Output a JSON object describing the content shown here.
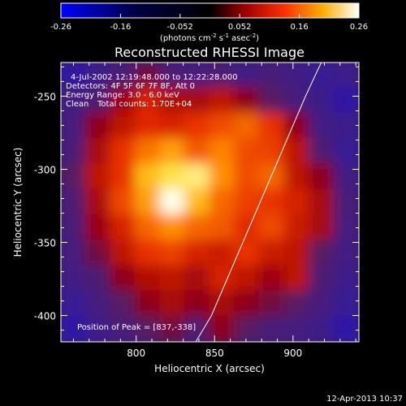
{
  "colorbar": {
    "tick_labels": [
      "-0.26",
      "-0.16",
      "-0.052",
      "0.052",
      "0.16",
      "0.26"
    ],
    "range": [
      -0.26,
      0.26
    ],
    "colormap": [
      "#0000ff",
      "#000000",
      "#e62000",
      "#ffd000",
      "#ffffff"
    ]
  },
  "colorbar_unit_label": {
    "pre": "(photons cm",
    "exp1": "-2",
    "mid": " s",
    "exp2": "-1",
    "mid2": " asec",
    "exp3": "-2",
    "post": ")"
  },
  "footer_timestamp": "12-Apr-2013 10:37",
  "chart_data": {
    "type": "heatmap",
    "title": "Reconstructed RHESSI Image",
    "xlabel": "Heliocentric X (arcsec)",
    "ylabel": "Heliocentric Y (arcsec)",
    "xlim": [
      752,
      942
    ],
    "ylim": [
      -418,
      -227
    ],
    "x_ticks": [
      800,
      850,
      900
    ],
    "x_tick_labels": [
      "800",
      "850",
      "900"
    ],
    "y_ticks": [
      -250,
      -300,
      -350,
      -400
    ],
    "y_tick_labels": [
      "-250",
      "-300",
      "-350",
      "-400"
    ],
    "annotations": [
      "4-Jul-2002 12:19:48.000 to 12:22:28.000",
      "Detectors: 4F 5F 6F 7F 8F, Att 0",
      "Energy Range: 3.0 - 6.0 keV",
      "Clean",
      "Total counts: 1.70E+04",
      "Position of Peak = [837,-338]"
    ],
    "peak_position": [
      837,
      -338
    ],
    "peak_value": 0.26,
    "limb_curve": [
      [
        838,
        -418
      ],
      [
        848,
        -400
      ],
      [
        860,
        -370
      ],
      [
        872,
        -340
      ],
      [
        884,
        -310
      ],
      [
        896,
        -280
      ],
      [
        908,
        -250
      ],
      [
        918,
        -227
      ]
    ],
    "intensity_grid": [
      [
        -0.16,
        -0.12,
        -0.05,
        0.0,
        -0.05,
        -0.08,
        -0.04,
        -0.1,
        -0.06,
        -0.1,
        -0.14,
        -0.12
      ],
      [
        -0.1,
        -0.04,
        0.03,
        0.08,
        0.05,
        0.04,
        0.06,
        0.02,
        -0.02,
        -0.08,
        -0.12,
        -0.16
      ],
      [
        -0.08,
        0.02,
        0.06,
        0.09,
        0.08,
        0.1,
        0.12,
        0.14,
        0.1,
        0.02,
        -0.1,
        -0.12
      ],
      [
        -0.06,
        0.04,
        0.1,
        0.15,
        0.18,
        0.13,
        0.16,
        0.12,
        0.11,
        0.06,
        -0.04,
        -0.14
      ],
      [
        -0.02,
        0.06,
        0.1,
        0.2,
        0.23,
        0.24,
        0.17,
        0.12,
        0.14,
        0.06,
        0.02,
        -0.1
      ],
      [
        -0.04,
        0.04,
        0.12,
        0.18,
        0.26,
        0.2,
        0.14,
        0.11,
        0.1,
        0.08,
        0.04,
        -0.06
      ],
      [
        -0.06,
        0.03,
        0.08,
        0.14,
        0.17,
        0.14,
        0.13,
        0.09,
        0.12,
        0.07,
        0.04,
        -0.08
      ],
      [
        -0.08,
        0.0,
        0.06,
        0.1,
        0.11,
        0.08,
        0.07,
        0.1,
        0.07,
        0.06,
        -0.02,
        -0.1
      ],
      [
        -0.1,
        -0.04,
        0.02,
        0.05,
        0.06,
        0.04,
        0.08,
        0.06,
        0.03,
        0.06,
        -0.04,
        -0.12
      ],
      [
        -0.14,
        -0.08,
        -0.02,
        0.02,
        0.04,
        0.02,
        0.04,
        0.02,
        0.0,
        -0.02,
        -0.08,
        -0.14
      ],
      [
        -0.16,
        -0.12,
        -0.06,
        -0.02,
        0.0,
        -0.03,
        0.02,
        -0.02,
        -0.06,
        -0.08,
        -0.12,
        -0.16
      ]
    ]
  }
}
